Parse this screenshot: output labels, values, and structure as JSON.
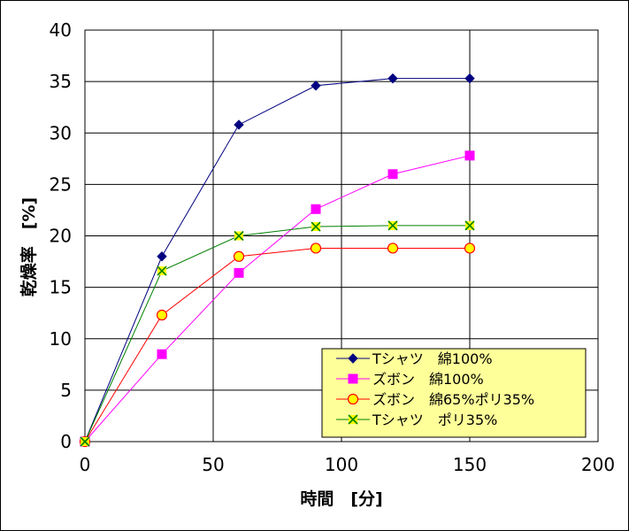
{
  "chart_data": {
    "type": "line",
    "xlabel": "時間　[分]",
    "ylabel": "乾燥率　[%]",
    "xlim": [
      0,
      200
    ],
    "ylim": [
      0,
      40
    ],
    "xticks": [
      0,
      50,
      100,
      150,
      200
    ],
    "yticks": [
      0,
      5,
      10,
      15,
      20,
      25,
      30,
      35,
      40
    ],
    "grid": true,
    "legend_position": "bottom-right",
    "plot_background": "#ffffff",
    "legend_background": "#ffff99",
    "series": [
      {
        "name": "Tシャツ　綿100%",
        "color": "#000080",
        "marker": "diamond",
        "x": [
          0,
          30,
          60,
          90,
          120,
          150
        ],
        "y": [
          0,
          18.0,
          30.8,
          34.6,
          35.3,
          35.3
        ]
      },
      {
        "name": "ズボン　綿100%",
        "color": "#ff00ff",
        "marker": "square",
        "x": [
          0,
          30,
          60,
          90,
          120,
          150
        ],
        "y": [
          0,
          8.5,
          16.4,
          22.6,
          26.0,
          27.8
        ]
      },
      {
        "name": "ズボン　綿65%ポリ35%",
        "color": "#ff0000",
        "marker": "circle",
        "marker_fill": "#ffff00",
        "x": [
          0,
          30,
          60,
          90,
          120,
          150
        ],
        "y": [
          0,
          12.3,
          18.0,
          18.8,
          18.8,
          18.8
        ]
      },
      {
        "name": "Tシャツ　ポリ35%",
        "color": "#008000",
        "marker": "x",
        "marker_fill": "#ffff00",
        "x": [
          0,
          30,
          60,
          90,
          120,
          150
        ],
        "y": [
          0,
          16.6,
          20.0,
          20.9,
          21.0,
          21.0
        ]
      }
    ]
  }
}
